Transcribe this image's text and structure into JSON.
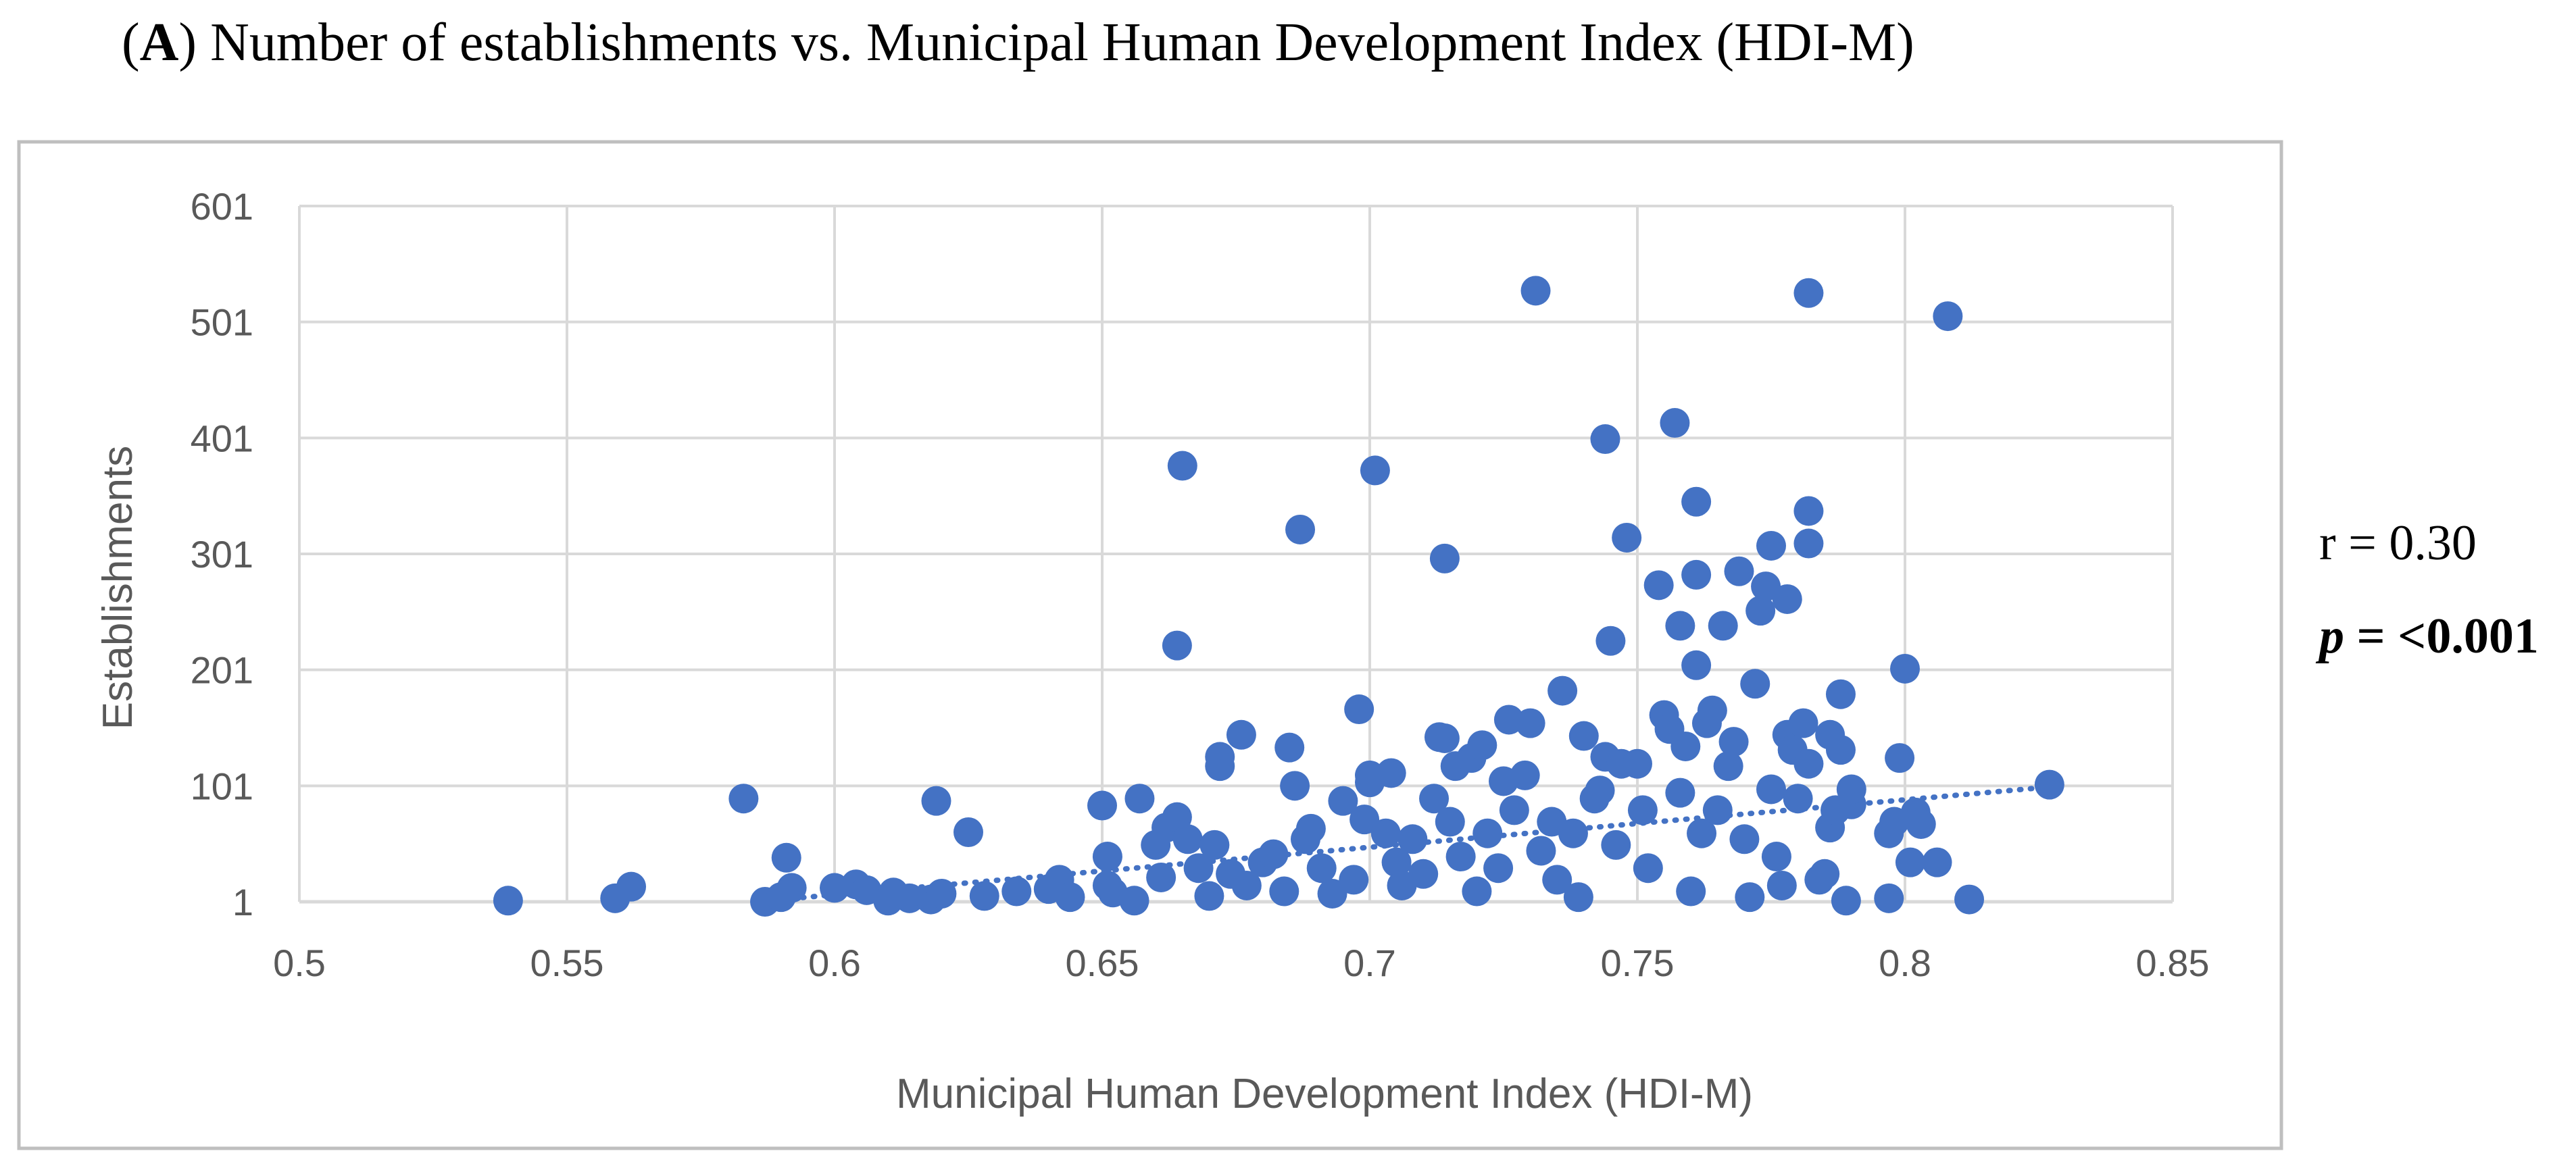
{
  "figure": {
    "panel_letter": "A",
    "title_text": "Number of establishments vs. Municipal Human Development Index (HDI-M)"
  },
  "stats": {
    "r_label": "r = 0.30",
    "p_symbol": "p",
    "p_value": " = <0.001"
  },
  "colors": {
    "points": "#4472C4",
    "grid": "#D9D9D9",
    "frame": "#BFBFBF",
    "axis_text": "#595959"
  },
  "chart_data": {
    "type": "scatter",
    "title": "",
    "xlabel": "Municipal Human Development Index (HDI-M)",
    "ylabel": "Establishments",
    "xlim": [
      0.5,
      0.85
    ],
    "ylim": [
      1,
      601
    ],
    "xticks": [
      0.5,
      0.55,
      0.6,
      0.65,
      0.7,
      0.75,
      0.8,
      0.85
    ],
    "xtick_labels": [
      "0.5",
      "0.55",
      "0.6",
      "0.65",
      "0.7",
      "0.75",
      "0.8",
      "0.85"
    ],
    "yticks": [
      1,
      101,
      201,
      301,
      401,
      501,
      601
    ],
    "ytick_labels": [
      "1",
      "101",
      "201",
      "301",
      "401",
      "501",
      "601"
    ],
    "grid": true,
    "trendline": {
      "style": "dotted linear",
      "x": [
        0.59,
        0.827
      ],
      "y": [
        3,
        100
      ]
    },
    "points": [
      {
        "x": 0.539,
        "y": 2
      },
      {
        "x": 0.559,
        "y": 4
      },
      {
        "x": 0.562,
        "y": 14
      },
      {
        "x": 0.583,
        "y": 90
      },
      {
        "x": 0.587,
        "y": 1
      },
      {
        "x": 0.59,
        "y": 5
      },
      {
        "x": 0.591,
        "y": 39
      },
      {
        "x": 0.592,
        "y": 13
      },
      {
        "x": 0.6,
        "y": 13
      },
      {
        "x": 0.604,
        "y": 16
      },
      {
        "x": 0.606,
        "y": 11
      },
      {
        "x": 0.61,
        "y": 2
      },
      {
        "x": 0.611,
        "y": 9
      },
      {
        "x": 0.614,
        "y": 4
      },
      {
        "x": 0.618,
        "y": 3
      },
      {
        "x": 0.619,
        "y": 88
      },
      {
        "x": 0.62,
        "y": 8
      },
      {
        "x": 0.625,
        "y": 61
      },
      {
        "x": 0.628,
        "y": 6
      },
      {
        "x": 0.634,
        "y": 10
      },
      {
        "x": 0.64,
        "y": 12
      },
      {
        "x": 0.642,
        "y": 20
      },
      {
        "x": 0.644,
        "y": 5
      },
      {
        "x": 0.65,
        "y": 84
      },
      {
        "x": 0.651,
        "y": 40
      },
      {
        "x": 0.651,
        "y": 15
      },
      {
        "x": 0.652,
        "y": 9
      },
      {
        "x": 0.656,
        "y": 2
      },
      {
        "x": 0.657,
        "y": 90
      },
      {
        "x": 0.66,
        "y": 50
      },
      {
        "x": 0.661,
        "y": 22
      },
      {
        "x": 0.662,
        "y": 65
      },
      {
        "x": 0.664,
        "y": 74
      },
      {
        "x": 0.664,
        "y": 222
      },
      {
        "x": 0.665,
        "y": 377
      },
      {
        "x": 0.666,
        "y": 55
      },
      {
        "x": 0.668,
        "y": 30
      },
      {
        "x": 0.67,
        "y": 6
      },
      {
        "x": 0.671,
        "y": 50
      },
      {
        "x": 0.672,
        "y": 118
      },
      {
        "x": 0.672,
        "y": 126
      },
      {
        "x": 0.674,
        "y": 25
      },
      {
        "x": 0.676,
        "y": 145
      },
      {
        "x": 0.677,
        "y": 15
      },
      {
        "x": 0.68,
        "y": 35
      },
      {
        "x": 0.682,
        "y": 42
      },
      {
        "x": 0.684,
        "y": 10
      },
      {
        "x": 0.685,
        "y": 134
      },
      {
        "x": 0.686,
        "y": 101
      },
      {
        "x": 0.687,
        "y": 322
      },
      {
        "x": 0.688,
        "y": 55
      },
      {
        "x": 0.689,
        "y": 64
      },
      {
        "x": 0.691,
        "y": 30
      },
      {
        "x": 0.693,
        "y": 8
      },
      {
        "x": 0.695,
        "y": 88
      },
      {
        "x": 0.697,
        "y": 20
      },
      {
        "x": 0.698,
        "y": 167
      },
      {
        "x": 0.699,
        "y": 72
      },
      {
        "x": 0.7,
        "y": 110
      },
      {
        "x": 0.7,
        "y": 104
      },
      {
        "x": 0.701,
        "y": 373
      },
      {
        "x": 0.703,
        "y": 60
      },
      {
        "x": 0.704,
        "y": 112
      },
      {
        "x": 0.705,
        "y": 35
      },
      {
        "x": 0.706,
        "y": 15
      },
      {
        "x": 0.708,
        "y": 55
      },
      {
        "x": 0.71,
        "y": 25
      },
      {
        "x": 0.712,
        "y": 90
      },
      {
        "x": 0.713,
        "y": 143
      },
      {
        "x": 0.714,
        "y": 142
      },
      {
        "x": 0.714,
        "y": 297
      },
      {
        "x": 0.715,
        "y": 70
      },
      {
        "x": 0.716,
        "y": 118
      },
      {
        "x": 0.717,
        "y": 40
      },
      {
        "x": 0.719,
        "y": 125
      },
      {
        "x": 0.72,
        "y": 10
      },
      {
        "x": 0.721,
        "y": 136
      },
      {
        "x": 0.722,
        "y": 60
      },
      {
        "x": 0.724,
        "y": 30
      },
      {
        "x": 0.725,
        "y": 105
      },
      {
        "x": 0.726,
        "y": 158
      },
      {
        "x": 0.727,
        "y": 80
      },
      {
        "x": 0.729,
        "y": 110
      },
      {
        "x": 0.73,
        "y": 155
      },
      {
        "x": 0.731,
        "y": 528
      },
      {
        "x": 0.732,
        "y": 45
      },
      {
        "x": 0.734,
        "y": 70
      },
      {
        "x": 0.735,
        "y": 20
      },
      {
        "x": 0.736,
        "y": 183
      },
      {
        "x": 0.738,
        "y": 60
      },
      {
        "x": 0.739,
        "y": 5
      },
      {
        "x": 0.74,
        "y": 144
      },
      {
        "x": 0.742,
        "y": 90
      },
      {
        "x": 0.743,
        "y": 97
      },
      {
        "x": 0.744,
        "y": 126
      },
      {
        "x": 0.744,
        "y": 400
      },
      {
        "x": 0.745,
        "y": 226
      },
      {
        "x": 0.746,
        "y": 50
      },
      {
        "x": 0.747,
        "y": 120
      },
      {
        "x": 0.748,
        "y": 315
      },
      {
        "x": 0.75,
        "y": 120
      },
      {
        "x": 0.751,
        "y": 80
      },
      {
        "x": 0.752,
        "y": 30
      },
      {
        "x": 0.754,
        "y": 274
      },
      {
        "x": 0.755,
        "y": 162
      },
      {
        "x": 0.756,
        "y": 150
      },
      {
        "x": 0.757,
        "y": 414
      },
      {
        "x": 0.758,
        "y": 239
      },
      {
        "x": 0.758,
        "y": 95
      },
      {
        "x": 0.759,
        "y": 135
      },
      {
        "x": 0.76,
        "y": 10
      },
      {
        "x": 0.761,
        "y": 346
      },
      {
        "x": 0.761,
        "y": 283
      },
      {
        "x": 0.761,
        "y": 205
      },
      {
        "x": 0.762,
        "y": 60
      },
      {
        "x": 0.763,
        "y": 155
      },
      {
        "x": 0.764,
        "y": 166
      },
      {
        "x": 0.765,
        "y": 80
      },
      {
        "x": 0.766,
        "y": 239
      },
      {
        "x": 0.767,
        "y": 118
      },
      {
        "x": 0.768,
        "y": 139
      },
      {
        "x": 0.769,
        "y": 286
      },
      {
        "x": 0.77,
        "y": 55
      },
      {
        "x": 0.771,
        "y": 5
      },
      {
        "x": 0.772,
        "y": 189
      },
      {
        "x": 0.773,
        "y": 252
      },
      {
        "x": 0.774,
        "y": 273
      },
      {
        "x": 0.775,
        "y": 308
      },
      {
        "x": 0.775,
        "y": 98
      },
      {
        "x": 0.776,
        "y": 40
      },
      {
        "x": 0.777,
        "y": 15
      },
      {
        "x": 0.778,
        "y": 262
      },
      {
        "x": 0.778,
        "y": 145
      },
      {
        "x": 0.779,
        "y": 132
      },
      {
        "x": 0.78,
        "y": 90
      },
      {
        "x": 0.781,
        "y": 155
      },
      {
        "x": 0.782,
        "y": 120
      },
      {
        "x": 0.782,
        "y": 526
      },
      {
        "x": 0.782,
        "y": 338
      },
      {
        "x": 0.782,
        "y": 310
      },
      {
        "x": 0.784,
        "y": 20
      },
      {
        "x": 0.785,
        "y": 25
      },
      {
        "x": 0.786,
        "y": 65
      },
      {
        "x": 0.786,
        "y": 145
      },
      {
        "x": 0.787,
        "y": 80
      },
      {
        "x": 0.788,
        "y": 180
      },
      {
        "x": 0.788,
        "y": 132
      },
      {
        "x": 0.789,
        "y": 2
      },
      {
        "x": 0.79,
        "y": 85
      },
      {
        "x": 0.79,
        "y": 98
      },
      {
        "x": 0.797,
        "y": 4
      },
      {
        "x": 0.797,
        "y": 60
      },
      {
        "x": 0.798,
        "y": 70
      },
      {
        "x": 0.799,
        "y": 125
      },
      {
        "x": 0.8,
        "y": 202
      },
      {
        "x": 0.801,
        "y": 35
      },
      {
        "x": 0.802,
        "y": 78
      },
      {
        "x": 0.803,
        "y": 68
      },
      {
        "x": 0.806,
        "y": 35
      },
      {
        "x": 0.808,
        "y": 506
      },
      {
        "x": 0.812,
        "y": 3
      },
      {
        "x": 0.827,
        "y": 102
      }
    ]
  }
}
